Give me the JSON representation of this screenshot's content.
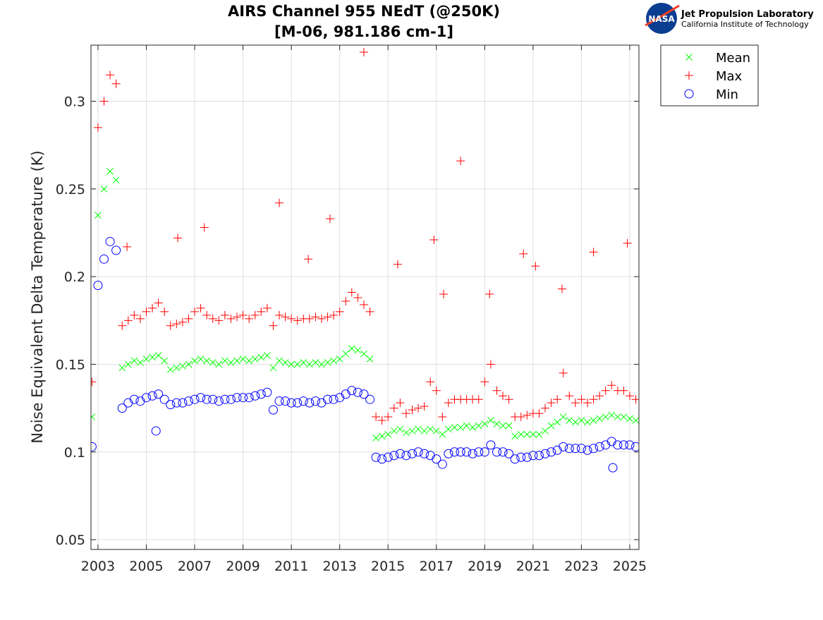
{
  "logo": {
    "text": "NASA",
    "org": "Jet Propulsion Laboratory",
    "sub": "California Institute of Technology"
  },
  "chart_data": {
    "type": "scatter",
    "title": [
      "AIRS Channel 955 NEdT (@250K)",
      "[M-06, 981.186 cm-1]"
    ],
    "xlabel": "",
    "ylabel": "Noise Equivalent Delta Temperature (K)",
    "xlim": [
      2002.71,
      2025.38
    ],
    "ylim": [
      0.0444,
      0.332
    ],
    "xticks": [
      2003,
      2005,
      2007,
      2009,
      2011,
      2013,
      2015,
      2017,
      2019,
      2021,
      2023,
      2025
    ],
    "xtick_labels": [
      "2003",
      "2005",
      "2007",
      "2009",
      "2011",
      "2013",
      "2015",
      "2017",
      "2019",
      "2021",
      "2023",
      "2025"
    ],
    "yticks": [
      0.05,
      0.1,
      0.15,
      0.2,
      0.25,
      0.3
    ],
    "ytick_labels": [
      "0.05",
      "0.1",
      "0.15",
      "0.2",
      "0.25",
      "0.3"
    ],
    "grid": true,
    "legend_placement": "outside-top-right",
    "series": [
      {
        "name": "Mean",
        "marker": "x",
        "color": "#00ff00",
        "column": 1
      },
      {
        "name": "Max",
        "marker": "+",
        "color": "#ff0000",
        "column": 2
      },
      {
        "name": "Min",
        "marker": "o",
        "color": "#0000ff",
        "column": 3
      }
    ],
    "point_columns": [
      "year",
      "mean",
      "max",
      "min"
    ],
    "points": [
      [
        2002.75,
        0.12,
        0.14,
        0.103
      ],
      [
        2003.0,
        0.235,
        0.285,
        0.195
      ],
      [
        2003.25,
        0.25,
        0.3,
        0.21
      ],
      [
        2003.5,
        0.26,
        0.315,
        0.22
      ],
      [
        2003.75,
        0.255,
        0.31,
        0.215
      ],
      [
        2004.0,
        0.148,
        0.172,
        0.125
      ],
      [
        2004.25,
        0.15,
        0.175,
        0.128
      ],
      [
        2004.5,
        0.152,
        0.178,
        0.13
      ],
      [
        2004.75,
        0.151,
        0.176,
        0.129
      ],
      [
        2005.0,
        0.153,
        0.18,
        0.131
      ],
      [
        2005.25,
        0.154,
        0.182,
        0.132
      ],
      [
        2005.5,
        0.155,
        0.185,
        0.133
      ],
      [
        2005.75,
        0.152,
        0.18,
        0.13
      ],
      [
        2006.0,
        0.147,
        0.172,
        0.127
      ],
      [
        2006.25,
        0.148,
        0.173,
        0.128
      ],
      [
        2006.5,
        0.149,
        0.174,
        0.128
      ],
      [
        2006.75,
        0.15,
        0.176,
        0.129
      ],
      [
        2007.0,
        0.152,
        0.18,
        0.13
      ],
      [
        2007.25,
        0.153,
        0.182,
        0.131
      ],
      [
        2007.5,
        0.152,
        0.178,
        0.13
      ],
      [
        2007.75,
        0.151,
        0.176,
        0.13
      ],
      [
        2008.0,
        0.15,
        0.175,
        0.129
      ],
      [
        2008.25,
        0.152,
        0.178,
        0.13
      ],
      [
        2008.5,
        0.151,
        0.176,
        0.13
      ],
      [
        2008.75,
        0.152,
        0.177,
        0.131
      ],
      [
        2009.0,
        0.153,
        0.178,
        0.131
      ],
      [
        2009.25,
        0.152,
        0.176,
        0.131
      ],
      [
        2009.5,
        0.153,
        0.178,
        0.132
      ],
      [
        2009.75,
        0.154,
        0.18,
        0.133
      ],
      [
        2010.0,
        0.155,
        0.182,
        0.134
      ],
      [
        2010.25,
        0.148,
        0.172,
        0.124
      ],
      [
        2010.5,
        0.152,
        0.178,
        0.129
      ],
      [
        2010.75,
        0.151,
        0.177,
        0.129
      ],
      [
        2011.0,
        0.15,
        0.176,
        0.128
      ],
      [
        2011.25,
        0.15,
        0.175,
        0.128
      ],
      [
        2011.5,
        0.151,
        0.176,
        0.129
      ],
      [
        2011.75,
        0.15,
        0.176,
        0.128
      ],
      [
        2012.0,
        0.151,
        0.177,
        0.129
      ],
      [
        2012.25,
        0.15,
        0.176,
        0.128
      ],
      [
        2012.5,
        0.151,
        0.177,
        0.13
      ],
      [
        2012.75,
        0.152,
        0.178,
        0.13
      ],
      [
        2013.0,
        0.153,
        0.18,
        0.131
      ],
      [
        2013.25,
        0.156,
        0.186,
        0.133
      ],
      [
        2013.5,
        0.159,
        0.191,
        0.135
      ],
      [
        2013.75,
        0.158,
        0.188,
        0.134
      ],
      [
        2014.0,
        0.156,
        0.184,
        0.133
      ],
      [
        2014.25,
        0.153,
        0.18,
        0.13
      ],
      [
        2014.5,
        0.108,
        0.12,
        0.097
      ],
      [
        2014.75,
        0.109,
        0.118,
        0.096
      ],
      [
        2015.0,
        0.11,
        0.12,
        0.097
      ],
      [
        2015.25,
        0.112,
        0.125,
        0.098
      ],
      [
        2015.5,
        0.113,
        0.128,
        0.099
      ],
      [
        2015.75,
        0.111,
        0.122,
        0.098
      ],
      [
        2016.0,
        0.112,
        0.124,
        0.099
      ],
      [
        2016.25,
        0.113,
        0.125,
        0.1
      ],
      [
        2016.5,
        0.112,
        0.126,
        0.099
      ],
      [
        2016.75,
        0.113,
        0.14,
        0.098
      ],
      [
        2017.0,
        0.112,
        0.135,
        0.096
      ],
      [
        2017.25,
        0.11,
        0.12,
        0.093
      ],
      [
        2017.5,
        0.113,
        0.128,
        0.099
      ],
      [
        2017.75,
        0.114,
        0.13,
        0.1
      ],
      [
        2018.0,
        0.114,
        0.13,
        0.1
      ],
      [
        2018.25,
        0.115,
        0.13,
        0.1
      ],
      [
        2018.5,
        0.114,
        0.13,
        0.099
      ],
      [
        2018.75,
        0.115,
        0.13,
        0.1
      ],
      [
        2019.0,
        0.116,
        0.14,
        0.1
      ],
      [
        2019.25,
        0.118,
        0.15,
        0.104
      ],
      [
        2019.5,
        0.116,
        0.135,
        0.1
      ],
      [
        2019.75,
        0.115,
        0.132,
        0.1
      ],
      [
        2020.0,
        0.115,
        0.13,
        0.099
      ],
      [
        2020.25,
        0.109,
        0.12,
        0.096
      ],
      [
        2020.5,
        0.11,
        0.12,
        0.097
      ],
      [
        2020.75,
        0.11,
        0.121,
        0.097
      ],
      [
        2021.0,
        0.11,
        0.122,
        0.098
      ],
      [
        2021.25,
        0.11,
        0.122,
        0.098
      ],
      [
        2021.5,
        0.112,
        0.125,
        0.099
      ],
      [
        2021.75,
        0.115,
        0.128,
        0.1
      ],
      [
        2022.0,
        0.117,
        0.13,
        0.101
      ],
      [
        2022.25,
        0.12,
        0.145,
        0.103
      ],
      [
        2022.5,
        0.118,
        0.132,
        0.102
      ],
      [
        2022.75,
        0.117,
        0.128,
        0.102
      ],
      [
        2023.0,
        0.118,
        0.13,
        0.102
      ],
      [
        2023.25,
        0.117,
        0.128,
        0.101
      ],
      [
        2023.5,
        0.118,
        0.13,
        0.102
      ],
      [
        2023.75,
        0.119,
        0.132,
        0.103
      ],
      [
        2024.0,
        0.12,
        0.135,
        0.104
      ],
      [
        2024.25,
        0.121,
        0.138,
        0.106
      ],
      [
        2024.5,
        0.12,
        0.135,
        0.104
      ],
      [
        2024.75,
        0.12,
        0.135,
        0.104
      ],
      [
        2025.0,
        0.119,
        0.132,
        0.104
      ],
      [
        2025.25,
        0.118,
        0.13,
        0.103
      ]
    ],
    "max_outliers": [
      [
        2004.2,
        0.217
      ],
      [
        2006.3,
        0.222
      ],
      [
        2007.4,
        0.228
      ],
      [
        2010.5,
        0.242
      ],
      [
        2011.7,
        0.21
      ],
      [
        2012.6,
        0.233
      ],
      [
        2014.0,
        0.328
      ],
      [
        2015.4,
        0.207
      ],
      [
        2016.9,
        0.221
      ],
      [
        2017.3,
        0.19
      ],
      [
        2018.0,
        0.266
      ],
      [
        2019.2,
        0.19
      ],
      [
        2020.6,
        0.213
      ],
      [
        2021.1,
        0.206
      ],
      [
        2022.2,
        0.193
      ],
      [
        2023.5,
        0.214
      ],
      [
        2024.9,
        0.219
      ]
    ],
    "min_outliers": [
      [
        2005.4,
        0.112
      ],
      [
        2024.3,
        0.091
      ]
    ]
  }
}
